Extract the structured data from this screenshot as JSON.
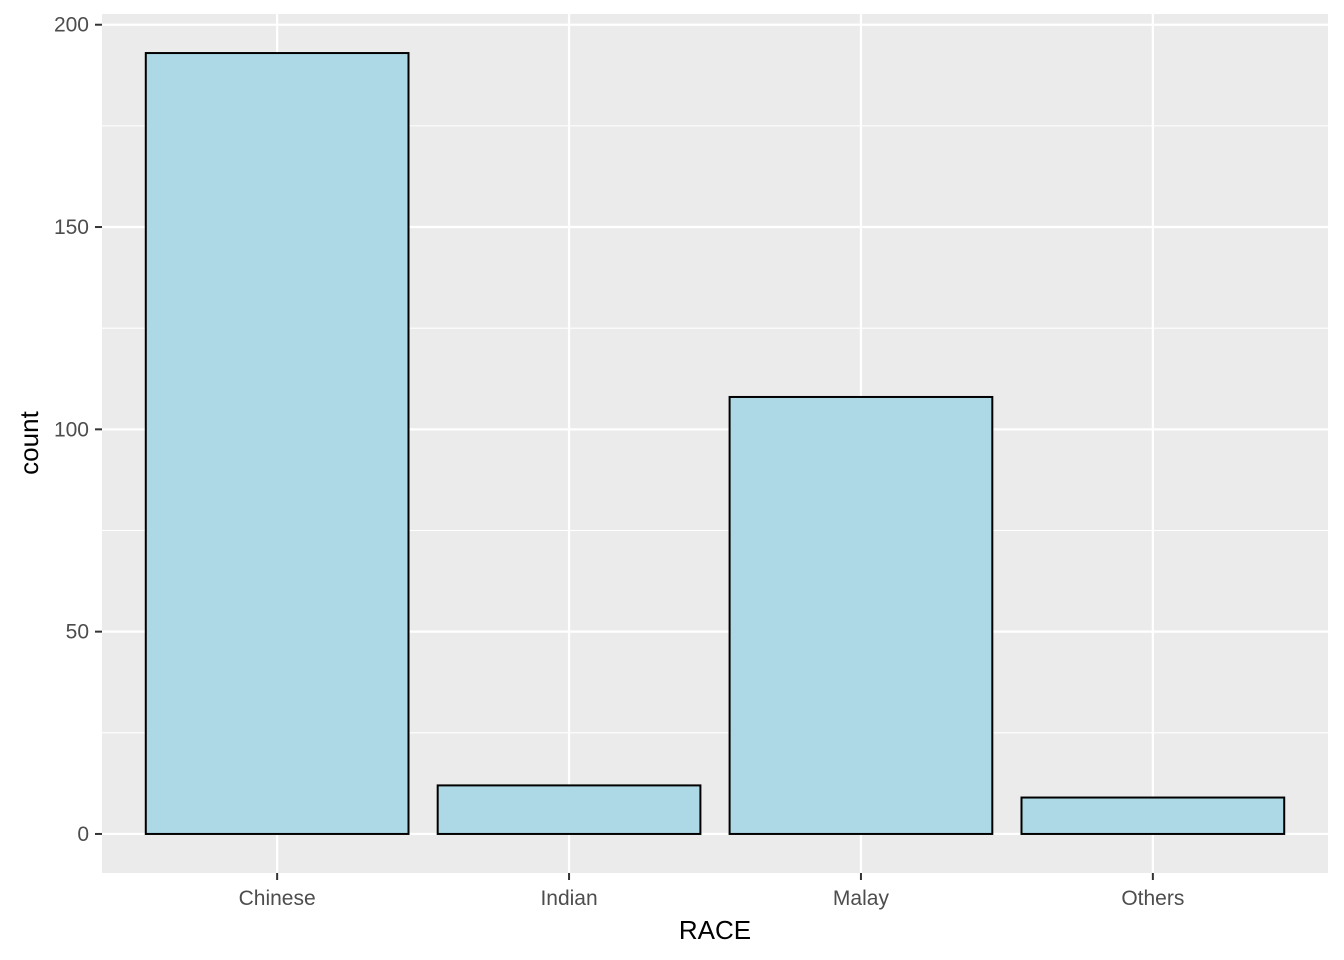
{
  "chart_data": {
    "type": "bar",
    "categories": [
      "Chinese",
      "Indian",
      "Malay",
      "Others"
    ],
    "values": [
      193,
      12,
      108,
      9
    ],
    "title": "",
    "xlabel": "RACE",
    "ylabel": "count",
    "ylim": [
      -9.65,
      202.65
    ],
    "yticks": [
      0,
      50,
      100,
      150,
      200
    ],
    "ytick_labels": [
      "0",
      "50",
      "100",
      "150",
      "200"
    ],
    "yminor_ticks": [
      25,
      75,
      125,
      175
    ],
    "grid": true,
    "legend": "none",
    "colors": {
      "bar_fill": "#add8e6",
      "bar_outline": "#000000",
      "panel_background": "#ebebeb",
      "grid": "#ffffff",
      "tick_text": "#4d4d4d",
      "tick_mark": "#333333"
    }
  }
}
